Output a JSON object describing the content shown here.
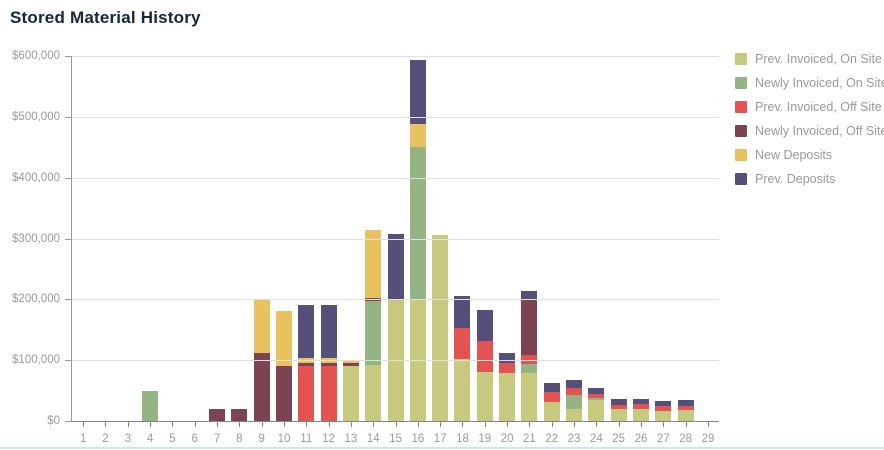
{
  "page": {
    "divider_color": "#cfe3f6",
    "axis_color": "#9b9b9b",
    "grid_color": "#e0e0e0",
    "label_color": "#9a9a9a",
    "title_color": "#18253a"
  },
  "chart_data": {
    "type": "bar",
    "stacked": true,
    "title": "Stored Material History",
    "xlabel": "",
    "ylabel": "",
    "ylim": [
      0,
      600000
    ],
    "y_tick_interval": 100000,
    "y_ticks": [
      "$600,000",
      "$500,000",
      "$400,000",
      "$300,000",
      "$200,000",
      "$100,000",
      "$0"
    ],
    "grid": "horizontal",
    "legend_position": "right",
    "categories": [
      "1",
      "2",
      "3",
      "4",
      "5",
      "6",
      "7",
      "8",
      "9",
      "10",
      "11",
      "12",
      "13",
      "14",
      "15",
      "16",
      "17",
      "18",
      "19",
      "20",
      "21",
      "22",
      "23",
      "24",
      "25",
      "26",
      "27",
      "28",
      "29"
    ],
    "series": [
      {
        "name": "Prev. Invoiced, On Site",
        "color": "#c6c97e",
        "values": [
          0,
          0,
          0,
          0,
          0,
          0,
          0,
          0,
          0,
          0,
          0,
          0,
          91000,
          92000,
          200000,
          200000,
          305000,
          102000,
          80000,
          79000,
          79000,
          31000,
          20000,
          34000,
          19000,
          20000,
          17000,
          18000,
          0
        ]
      },
      {
        "name": "Newly Invoiced, On Site",
        "color": "#94b483",
        "values": [
          0,
          0,
          0,
          50000,
          0,
          0,
          0,
          0,
          0,
          0,
          0,
          0,
          0,
          106000,
          0,
          250000,
          0,
          0,
          0,
          0,
          14000,
          0,
          22000,
          4000,
          0,
          0,
          0,
          0,
          0
        ]
      },
      {
        "name": "Prev. Invoiced, Off Site",
        "color": "#e25351",
        "values": [
          0,
          0,
          0,
          0,
          0,
          0,
          0,
          0,
          0,
          0,
          91000,
          91000,
          0,
          0,
          0,
          0,
          0,
          51000,
          51000,
          17000,
          16000,
          16000,
          13000,
          7000,
          7000,
          8000,
          8000,
          7000,
          0
        ]
      },
      {
        "name": "Newly Invoiced, Off Site",
        "color": "#7c4353",
        "values": [
          0,
          0,
          0,
          0,
          0,
          0,
          20000,
          19000,
          111000,
          91000,
          5000,
          5000,
          4000,
          5000,
          0,
          0,
          0,
          0,
          0,
          0,
          90000,
          0,
          0,
          0,
          0,
          0,
          0,
          0,
          0
        ]
      },
      {
        "name": "New Deposits",
        "color": "#e7c25f",
        "values": [
          0,
          0,
          0,
          0,
          0,
          0,
          0,
          0,
          90000,
          90000,
          7000,
          7000,
          6000,
          111000,
          0,
          38000,
          0,
          0,
          0,
          0,
          0,
          0,
          0,
          0,
          0,
          0,
          0,
          0,
          0
        ]
      },
      {
        "name": "Prev. Deposits",
        "color": "#555079",
        "values": [
          0,
          0,
          0,
          0,
          0,
          0,
          0,
          0,
          0,
          0,
          88000,
          88000,
          0,
          0,
          107000,
          106000,
          0,
          53000,
          52000,
          16000,
          15000,
          16000,
          13000,
          10000,
          10000,
          9000,
          8000,
          9000,
          0
        ]
      }
    ]
  }
}
